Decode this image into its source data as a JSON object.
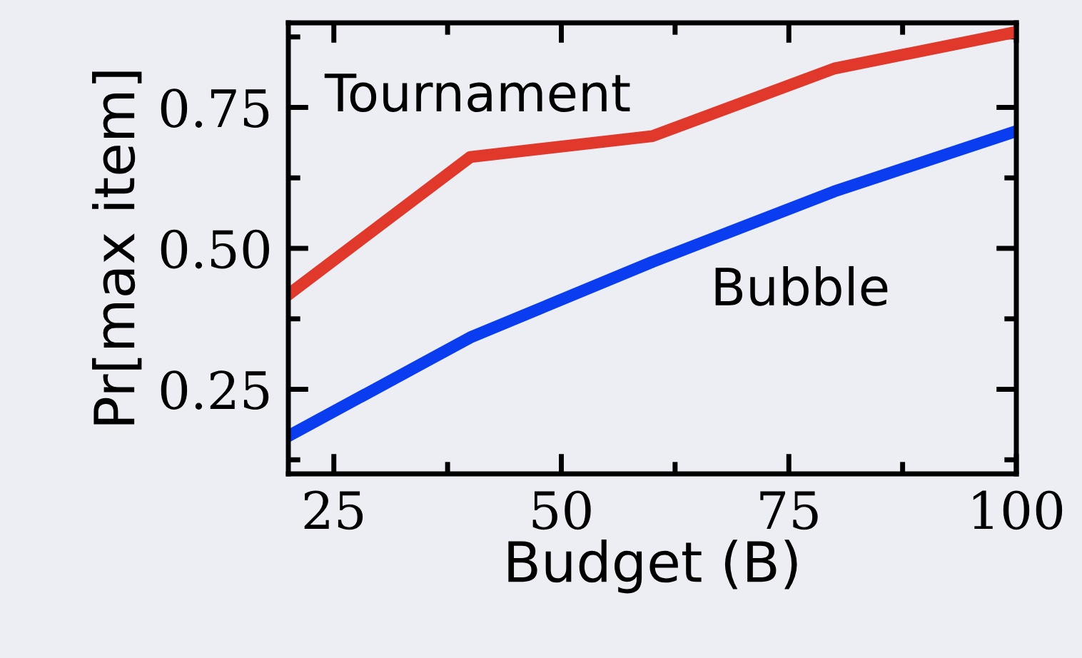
{
  "chart_data": {
    "type": "line",
    "xlabel": "Budget (B)",
    "ylabel": "Pr[max item]",
    "x": [
      20,
      40,
      60,
      80,
      100
    ],
    "series": [
      {
        "name": "Tournament",
        "color": "#e0392b",
        "values": [
          0.418,
          0.662,
          0.699,
          0.819,
          0.884
        ]
      },
      {
        "name": "Bubble",
        "color": "#0a3cf0",
        "values": [
          0.167,
          0.342,
          0.476,
          0.601,
          0.708
        ]
      }
    ],
    "xlim": [
      20,
      100
    ],
    "ylim": [
      0.1,
      0.9
    ],
    "xticks": [
      25,
      {
        "value": 37.5,
        "label": null
      },
      50,
      {
        "value": 62.5,
        "label": null
      },
      75,
      {
        "value": 87.5,
        "label": null
      },
      100
    ],
    "yticks": [
      {
        "value": 0.125,
        "label": null
      },
      {
        "value": 0.25,
        "label": "0.25"
      },
      {
        "value": 0.375,
        "label": null
      },
      {
        "value": 0.5,
        "label": "0.50"
      },
      {
        "value": 0.625,
        "label": null
      },
      {
        "value": 0.75,
        "label": "0.75"
      },
      {
        "value": 0.875,
        "label": null
      }
    ],
    "grid": false,
    "legend": false,
    "marker": "none",
    "line_style": "solid"
  }
}
